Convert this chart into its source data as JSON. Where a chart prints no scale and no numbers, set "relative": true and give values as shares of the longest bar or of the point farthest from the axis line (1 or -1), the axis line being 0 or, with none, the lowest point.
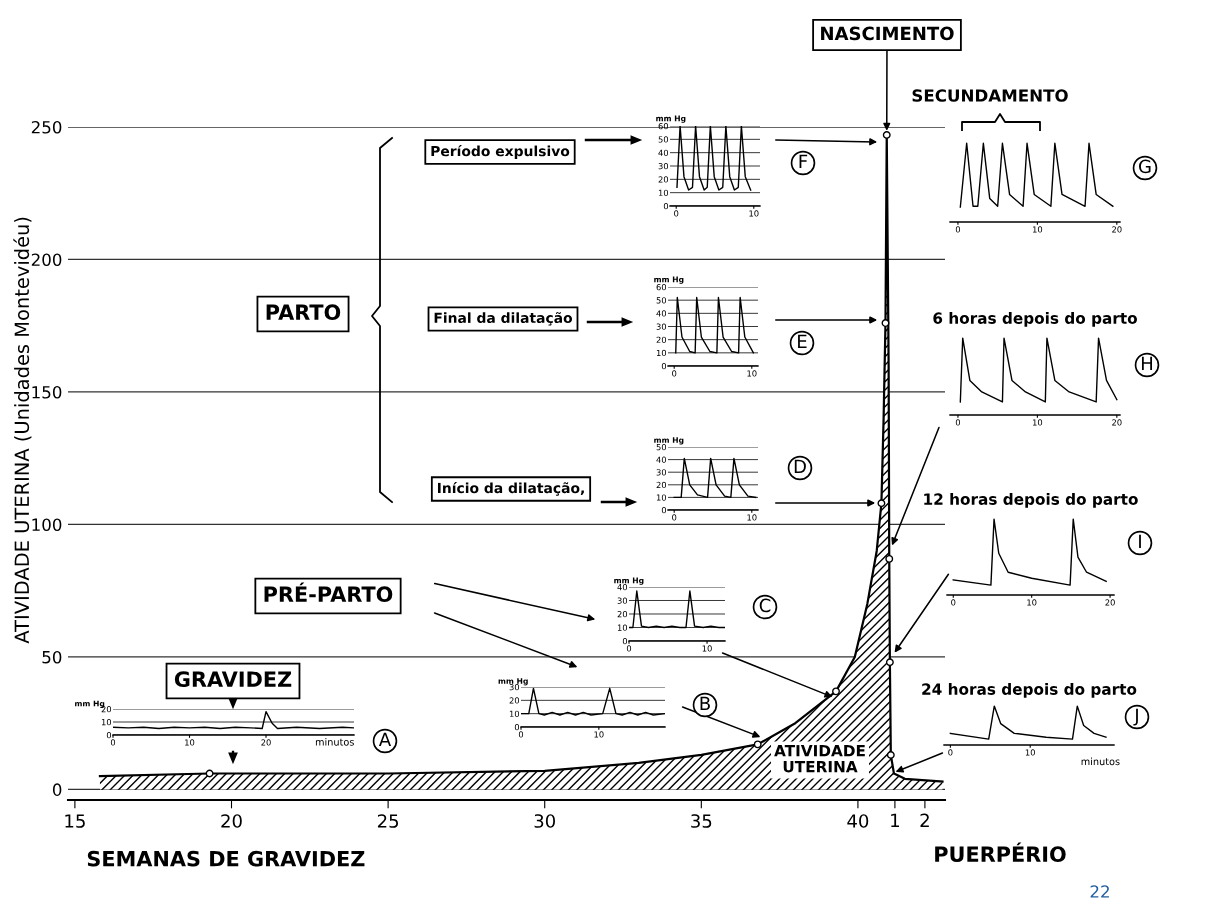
{
  "chart_data": [
    {
      "type": "area",
      "xlabel": "SEMANAS DE GRAVIDEZ",
      "ylabel": "ATIVIDADE UTERINA (Unidades Montevidéu)",
      "grid": "y",
      "xlim": [
        14.78,
        42.78
      ],
      "ylim": [
        -4,
        250
      ],
      "xticks": [
        15,
        20,
        25,
        30,
        35,
        40
      ],
      "x2lim": [
        -26.57,
        2.67
      ],
      "x2ticks": [
        1,
        2
      ],
      "yticks": [
        0,
        50,
        100,
        150,
        200,
        250
      ],
      "annotations": [
        "GRAVIDEZ",
        "PRÉ-PARTO",
        "PARTO",
        "Período expulsivo",
        "Final da dilatação",
        "Início da dilatação,",
        {
          "text": "NASCIMENTO",
          "x": 40.92,
          "y": 247
        },
        "SECUNDAMENTO",
        "ATIVIDADE\nUTERINA",
        "PUERPÉRIO",
        "22"
      ],
      "series": [
        {
          "type": "area",
          "color": "#000000",
          "x": [
            15.8,
            19.3,
            25,
            30,
            33,
            35,
            36.8,
            38,
            39.3,
            39.9,
            40.3,
            40.6,
            40.75,
            40.82,
            40.88,
            40.92,
            40.98,
            41.0,
            41.02,
            41.05,
            41.15,
            41.5,
            42.7
          ],
          "values": [
            5,
            6,
            6,
            7,
            10,
            13,
            17,
            25,
            37,
            50,
            70,
            90,
            108,
            140,
            176,
            247,
            160,
            87,
            48,
            13,
            6,
            4,
            3
          ]
        },
        {
          "type": "scatter",
          "color": "#000000",
          "marker": "circle",
          "x": [
            19.3,
            36.8,
            39.3,
            40.75,
            40.88,
            40.92,
            41.0,
            41.02,
            41.05
          ],
          "values": [
            6,
            17,
            37,
            108,
            176,
            247,
            87,
            48,
            13
          ]
        }
      ]
    },
    {
      "type": "line",
      "ylabel": "mm Hg",
      "xlabel": "minutos",
      "grid": "y",
      "annotations": [
        "A"
      ],
      "xlim": [
        0,
        31.5
      ],
      "ylim": [
        0,
        20
      ],
      "xticks": [
        0,
        10,
        20
      ],
      "yticks": [
        0,
        10,
        20
      ],
      "series": [
        {
          "color": "#000000",
          "x": [
            0,
            2,
            4,
            6,
            8,
            10,
            12,
            14,
            16,
            18,
            19.5,
            20,
            20.8,
            21.5,
            24,
            27,
            30,
            31.5
          ],
          "values": [
            6,
            5.5,
            6,
            5,
            6,
            5.5,
            6,
            5,
            6,
            5.5,
            5,
            18,
            9,
            5,
            6,
            5,
            6,
            5.5
          ]
        }
      ]
    },
    {
      "type": "line",
      "ylabel": "mm Hg",
      "grid": "y",
      "annotations": [
        "B"
      ],
      "xlim": [
        0,
        18.5
      ],
      "ylim": [
        0,
        30
      ],
      "xticks": [
        0,
        10
      ],
      "yticks": [
        0,
        10,
        20,
        30
      ],
      "series": [
        {
          "color": "#000000",
          "x": [
            0,
            1,
            1.6,
            2.3,
            3,
            4,
            5,
            6,
            7,
            8,
            9,
            10.5,
            11.4,
            12.2,
            13,
            14,
            15,
            16,
            17,
            18.5
          ],
          "values": [
            10,
            10,
            29,
            10,
            9,
            11,
            9,
            11,
            9,
            11,
            9,
            10,
            29,
            10,
            9,
            11,
            9,
            11,
            9,
            10
          ]
        }
      ]
    },
    {
      "type": "line",
      "ylabel": "mm Hg",
      "grid": "y",
      "annotations": [
        "C"
      ],
      "xlim": [
        0,
        12.3
      ],
      "ylim": [
        0,
        40
      ],
      "xticks": [
        0,
        10
      ],
      "yticks": [
        0,
        10,
        20,
        30,
        40
      ],
      "series": [
        {
          "color": "#000000",
          "x": [
            0,
            0.5,
            1,
            1.6,
            2.5,
            3.5,
            4.5,
            5.5,
            6.5,
            7.3,
            7.8,
            8.4,
            9.5,
            10.5,
            11.5,
            12.3
          ],
          "values": [
            10,
            10,
            37,
            11,
            10,
            11,
            10,
            11,
            10,
            10,
            37,
            11,
            10,
            11,
            10,
            10
          ]
        }
      ]
    },
    {
      "type": "line",
      "ylabel": "mm Hg",
      "grid": "y",
      "annotations": [
        "D"
      ],
      "xlim": [
        -0.8,
        10.8
      ],
      "ylim": [
        0,
        50
      ],
      "xticks": [
        0,
        10
      ],
      "yticks": [
        0,
        10,
        20,
        30,
        40,
        50
      ],
      "series": [
        {
          "color": "#000000",
          "x": [
            0,
            0.9,
            1.3,
            2,
            3,
            4.3,
            4.7,
            5.4,
            6.5,
            7.3,
            7.7,
            8.4,
            9.5,
            10.5
          ],
          "values": [
            10,
            10,
            41,
            20,
            12,
            10,
            41,
            20,
            11,
            10,
            41,
            20,
            11,
            10
          ]
        }
      ]
    },
    {
      "type": "line",
      "ylabel": "mm Hg",
      "grid": "y",
      "annotations": [
        "E"
      ],
      "xlim": [
        -0.8,
        10.8
      ],
      "ylim": [
        0,
        60
      ],
      "xticks": [
        0,
        10
      ],
      "yticks": [
        0,
        10,
        20,
        30,
        40,
        50,
        60
      ],
      "series": [
        {
          "color": "#000000",
          "x": [
            0.2,
            0.4,
            1,
            2,
            2.7,
            2.9,
            3.5,
            4.6,
            5.5,
            5.7,
            6.3,
            7.4,
            8.3,
            8.5,
            9.1,
            10.2
          ],
          "values": [
            10,
            52,
            22,
            11,
            10,
            52,
            22,
            11,
            10,
            52,
            22,
            11,
            10,
            52,
            22,
            10
          ]
        }
      ]
    },
    {
      "type": "line",
      "ylabel": "mm Hg",
      "grid": "y",
      "annotations": [
        "F"
      ],
      "xlim": [
        -0.8,
        10.8
      ],
      "ylim": [
        0,
        60
      ],
      "xticks": [
        0,
        10
      ],
      "yticks": [
        0,
        10,
        20,
        30,
        40,
        50,
        60
      ],
      "series": [
        {
          "color": "#000000",
          "x": [
            0.1,
            0.5,
            1,
            1.6,
            2.1,
            2.5,
            3,
            3.6,
            4,
            4.4,
            4.9,
            5.5,
            6,
            6.4,
            6.9,
            7.5,
            8,
            8.4,
            8.9,
            9.6
          ],
          "values": [
            14,
            60,
            22,
            12,
            14,
            60,
            22,
            12,
            14,
            60,
            22,
            12,
            14,
            60,
            22,
            12,
            14,
            60,
            22,
            12
          ]
        }
      ]
    },
    {
      "type": "line",
      "relative": true,
      "annotations": [
        "G"
      ],
      "xlim": [
        -1,
        20.4
      ],
      "xticks": [
        0,
        10,
        20
      ],
      "series": [
        {
          "color": "#000000",
          "x": [
            0.3,
            1.1,
            1.9,
            2.5,
            3.2,
            4,
            5,
            5.6,
            6.5,
            8.2,
            8.7,
            9.6,
            11.7,
            12.2,
            13.1,
            16,
            16.5,
            17.4,
            19.5
          ],
          "values": [
            0.19,
            1,
            0.2,
            0.2,
            1,
            0.3,
            0.2,
            1,
            0.35,
            0.2,
            1,
            0.35,
            0.2,
            1,
            0.35,
            0.2,
            1,
            0.35,
            0.2
          ]
        }
      ]
    },
    {
      "type": "line",
      "relative": true,
      "title": "6 horas depois do parto",
      "annotations": [
        "H"
      ],
      "xlim": [
        -1,
        20.4
      ],
      "xticks": [
        0,
        10,
        20
      ],
      "series": [
        {
          "color": "#000000",
          "x": [
            0.3,
            0.6,
            1.5,
            3,
            5.6,
            5.8,
            6.8,
            8.5,
            11,
            11.2,
            12.2,
            14,
            17.4,
            17.7,
            18.7,
            20
          ],
          "values": [
            0.17,
            1,
            0.45,
            0.3,
            0.17,
            1,
            0.45,
            0.3,
            0.17,
            1,
            0.45,
            0.3,
            0.17,
            1,
            0.45,
            0.2
          ]
        }
      ]
    },
    {
      "type": "line",
      "relative": true,
      "title": "12 horas depois do parto",
      "annotations": [
        "I"
      ],
      "xlim": [
        -0.8,
        20.5
      ],
      "xticks": [
        0,
        10,
        20
      ],
      "series": [
        {
          "color": "#000000",
          "x": [
            0,
            4.8,
            5.2,
            5.8,
            7,
            10,
            14.9,
            15.3,
            15.9,
            17,
            19.5
          ],
          "values": [
            0.2,
            0.13,
            1,
            0.55,
            0.3,
            0.22,
            0.13,
            1,
            0.5,
            0.3,
            0.18
          ]
        }
      ]
    },
    {
      "type": "line",
      "relative": true,
      "title": "24 horas depois do parto",
      "xlabel": "minutos",
      "annotations": [
        "J"
      ],
      "xlim": [
        -0.8,
        20.5
      ],
      "xticks": [
        0,
        10
      ],
      "series": [
        {
          "color": "#000000",
          "x": [
            0,
            4.8,
            5.5,
            6.3,
            8,
            12,
            15.3,
            15.9,
            16.7,
            18,
            19.5
          ],
          "values": [
            0.3,
            0.15,
            1,
            0.55,
            0.3,
            0.2,
            0.15,
            1,
            0.5,
            0.3,
            0.2
          ]
        }
      ]
    }
  ]
}
